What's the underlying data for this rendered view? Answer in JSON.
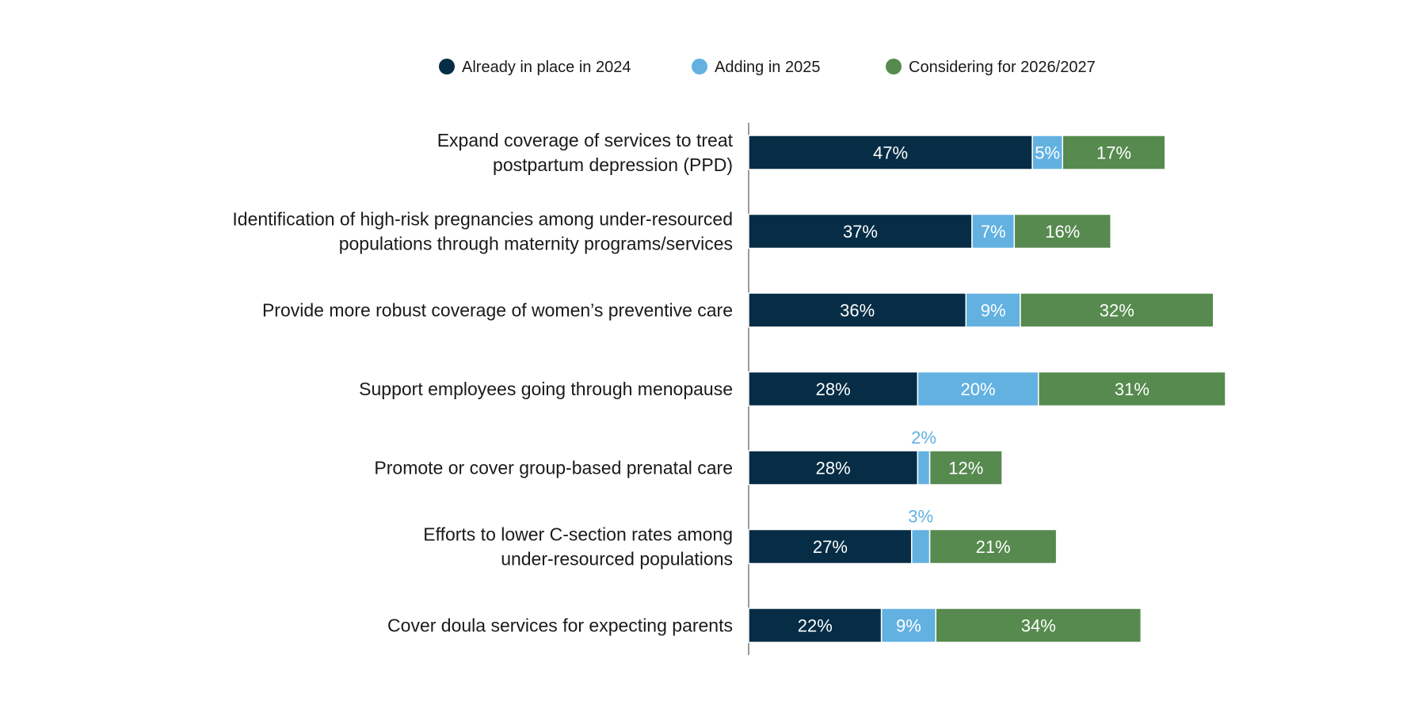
{
  "chart_data": {
    "type": "bar",
    "orientation": "horizontal",
    "stacked": true,
    "title": "",
    "xlabel": "",
    "ylabel": "",
    "xlim": [
      0,
      100
    ],
    "grid": false,
    "legend_position": "top",
    "categories": [
      [
        "Expand coverage of services to treat",
        "postpartum depression (PPD)"
      ],
      [
        "Identification of high-risk pregnancies among under-resourced",
        "populations through maternity programs/services"
      ],
      [
        "Provide more robust coverage of women’s preventive care"
      ],
      [
        "Support employees going through menopause"
      ],
      [
        "Promote or cover group-based prenatal care"
      ],
      [
        "Efforts to lower C-section rates among",
        "under-resourced populations"
      ],
      [
        "Cover doula services for expecting parents"
      ]
    ],
    "series": [
      {
        "name": "Already in place in 2024",
        "color": "#062d45",
        "label_color": "#ffffff",
        "values": [
          47,
          37,
          36,
          28,
          28,
          27,
          22
        ],
        "labels": [
          "47%",
          "37%",
          "36%",
          "28%",
          "28%",
          "27%",
          "22%"
        ]
      },
      {
        "name": "Adding in 2025",
        "color": "#62b1e1",
        "label_color": "#ffffff",
        "outside_label_color": "#62b1e1",
        "values": [
          5,
          7,
          9,
          20,
          2,
          3,
          9
        ],
        "labels": [
          "5%",
          "7%",
          "9%",
          "20%",
          "2%",
          "3%",
          "9%"
        ]
      },
      {
        "name": "Considering for 2026/2027",
        "color": "#568a4e",
        "label_color": "#ffffff",
        "values": [
          17,
          16,
          32,
          31,
          12,
          21,
          34
        ],
        "labels": [
          "17%",
          "16%",
          "32%",
          "31%",
          "12%",
          "21%",
          "34%"
        ]
      }
    ]
  }
}
